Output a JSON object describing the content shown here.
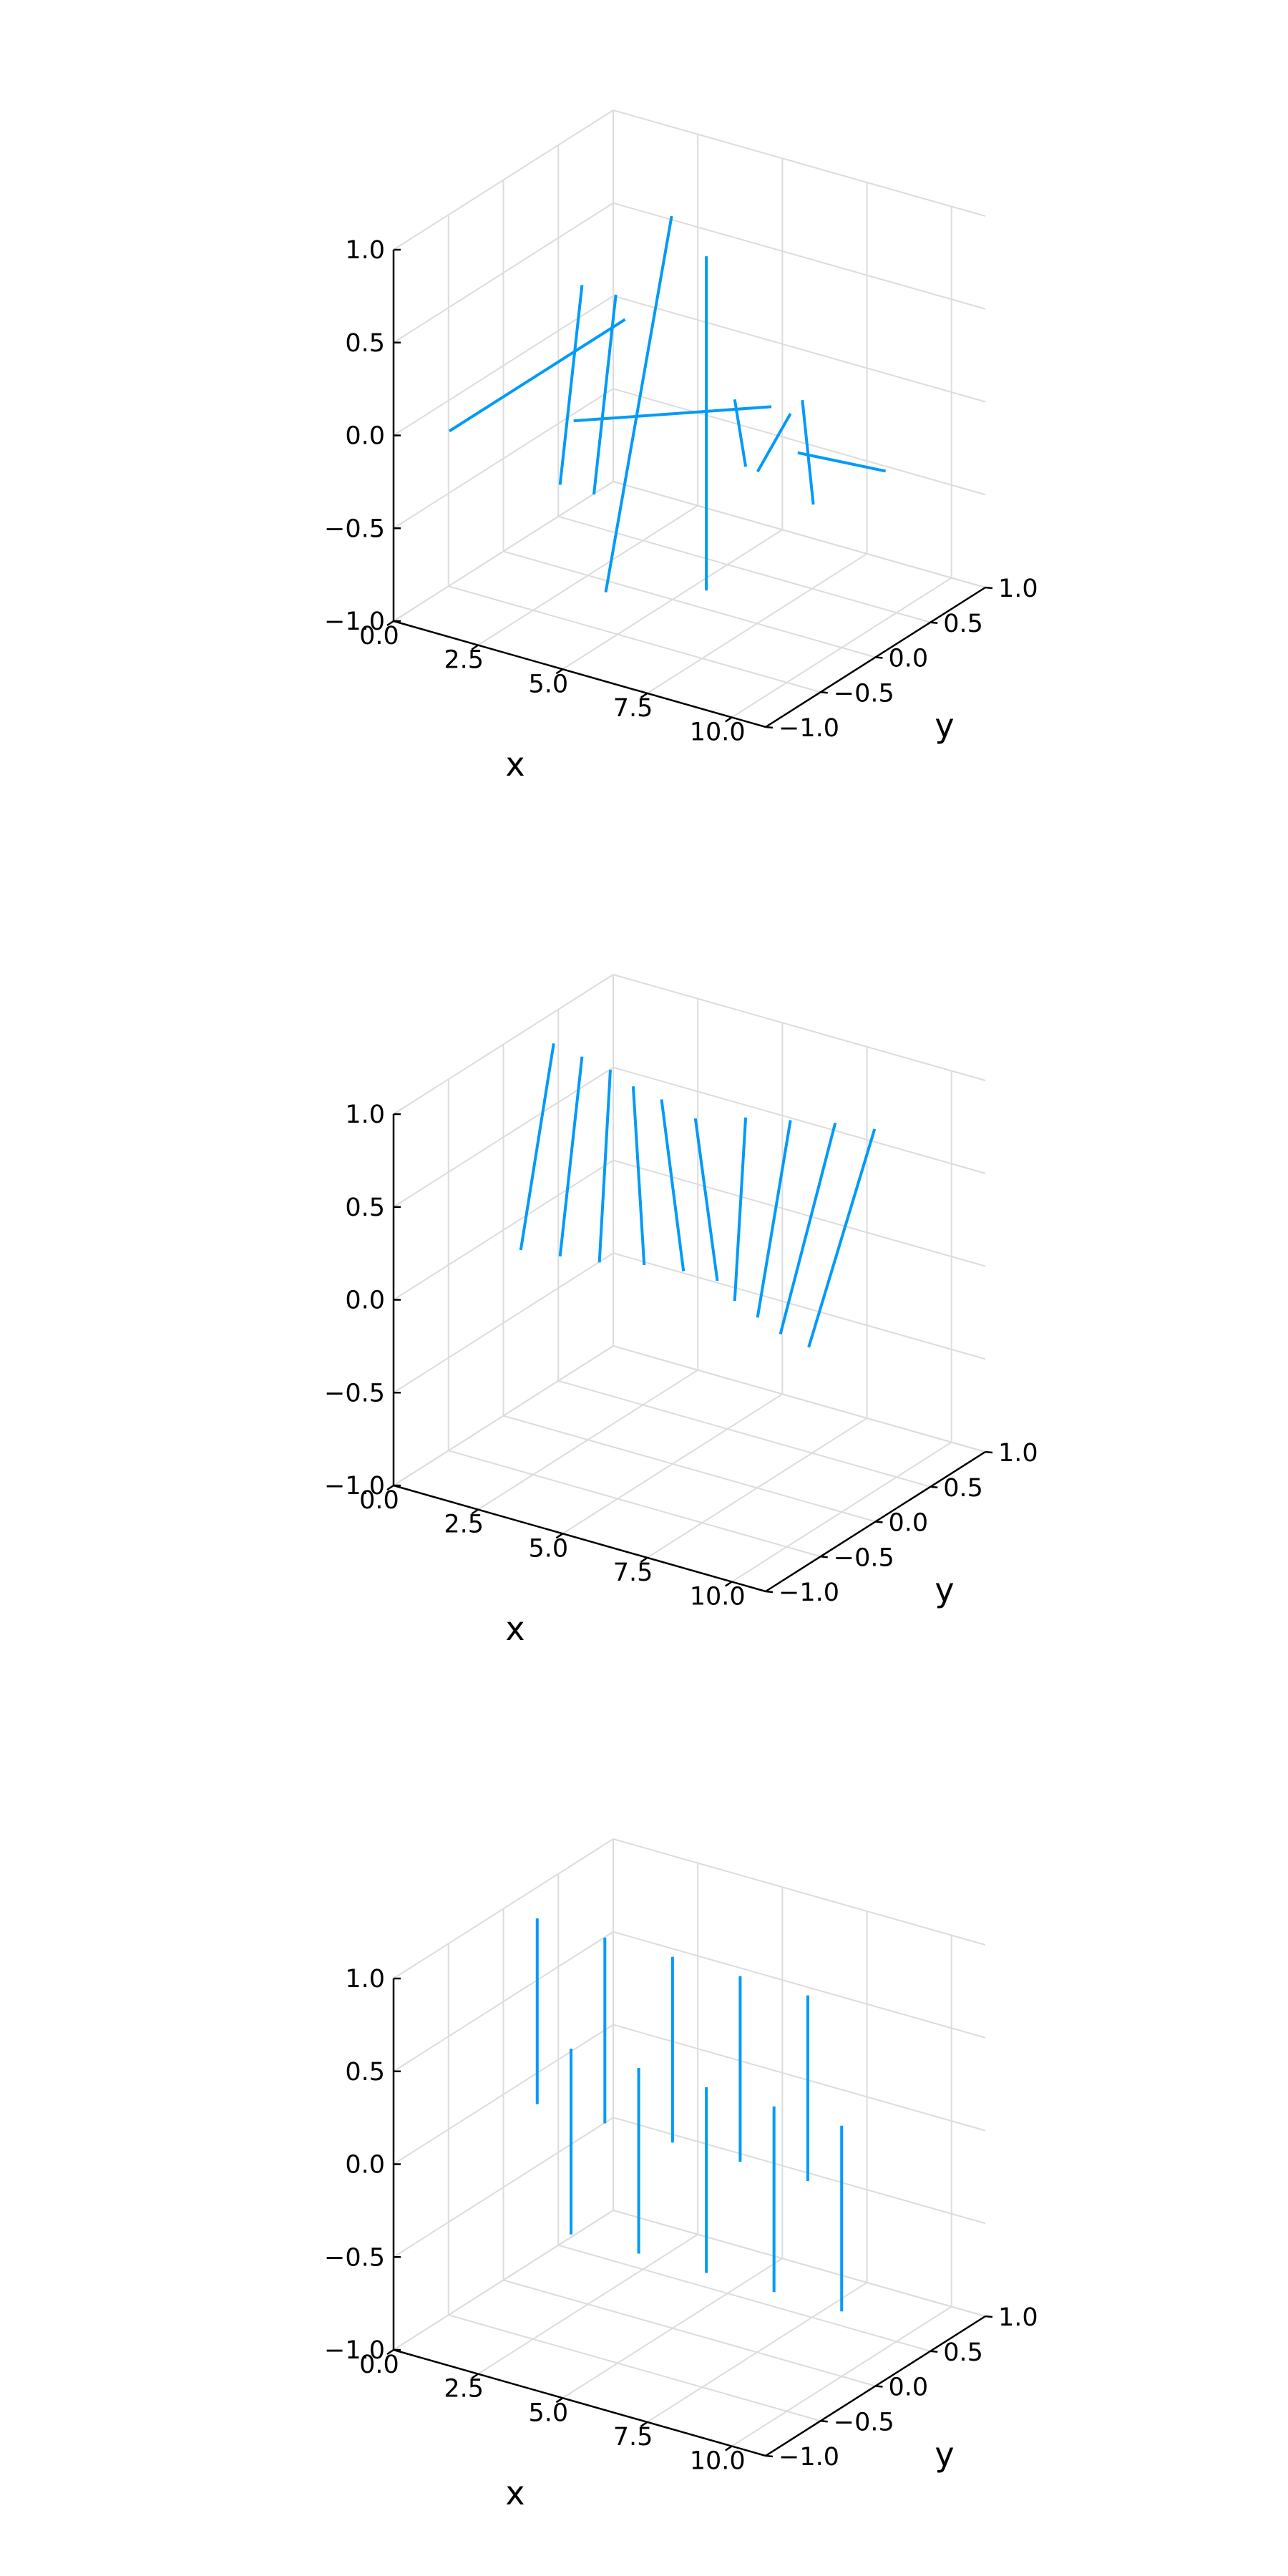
{
  "chart_data": [
    {
      "type": "line",
      "panel": "top",
      "xlabel": "x",
      "ylabel": "y",
      "zlabel": "",
      "xlim": [
        0,
        11
      ],
      "ylim": [
        -1,
        1
      ],
      "zlim": [
        -1,
        1
      ],
      "xticks": [
        0,
        2.5,
        5,
        7.5,
        10
      ],
      "yticks": [
        -1,
        -0.5,
        0,
        0.5,
        1
      ],
      "zticks": [
        -1,
        -0.5,
        0,
        0.5,
        1
      ],
      "xtick_labels": [
        "0.0",
        "2.5",
        "5.0",
        "7.5",
        "10.0"
      ],
      "ytick_labels": [
        "−1.0",
        "−0.5",
        "0.0",
        "0.5",
        "1.0"
      ],
      "ztick_labels": [
        "−1.0",
        "−0.5",
        "0.0",
        "0.5",
        "1.0"
      ],
      "grid": true,
      "color": "#009af9",
      "segments": [
        {
          "x": [
            1,
            1
          ],
          "y": [
            0.8,
            -0.8
          ],
          "z": [
            0,
            0
          ]
        },
        {
          "x": [
            2,
            2
          ],
          "y": [
            0.1,
            -0.1
          ],
          "z": [
            0.5,
            -0.5
          ]
        },
        {
          "x": [
            3,
            3
          ],
          "y": [
            -0.1,
            0.1
          ],
          "z": [
            -0.5,
            0.5
          ]
        },
        {
          "x": [
            4,
            4
          ],
          "y": [
            0.3,
            -0.3
          ],
          "z": [
            0.9,
            -0.9
          ]
        },
        {
          "x": [
            5,
            5
          ],
          "y": [
            -0.9,
            0.9
          ],
          "z": [
            0.3,
            -0.3
          ]
        },
        {
          "x": [
            6,
            6
          ],
          "y": [
            0,
            0
          ],
          "z": [
            0.9,
            -0.9
          ]
        },
        {
          "x": [
            7,
            7
          ],
          "y": [
            -0.05,
            0.05
          ],
          "z": [
            0.2,
            -0.2
          ]
        },
        {
          "x": [
            8,
            8
          ],
          "y": [
            0.15,
            -0.15
          ],
          "z": [
            0.1,
            -0.1
          ]
        },
        {
          "x": [
            9,
            9
          ],
          "y": [
            -0.05,
            0.05
          ],
          "z": [
            0.3,
            -0.3
          ]
        },
        {
          "x": [
            10,
            10
          ],
          "y": [
            0.4,
            -0.4
          ],
          "z": [
            -0.2,
            0.2
          ]
        }
      ]
    },
    {
      "type": "line",
      "panel": "middle",
      "xlabel": "x",
      "ylabel": "y",
      "zlabel": "",
      "xlim": [
        0,
        11
      ],
      "ylim": [
        -1,
        1
      ],
      "zlim": [
        -1,
        1
      ],
      "xticks": [
        0,
        2.5,
        5,
        7.5,
        10
      ],
      "yticks": [
        -1,
        -0.5,
        0,
        0.5,
        1
      ],
      "zticks": [
        -1,
        -0.5,
        0,
        0.5,
        1
      ],
      "xtick_labels": [
        "0.0",
        "2.5",
        "5.0",
        "7.5",
        "10.0"
      ],
      "ytick_labels": [
        "−1.0",
        "−0.5",
        "0.0",
        "0.5",
        "1.0"
      ],
      "ztick_labels": [
        "−1.0",
        "−0.5",
        "0.0",
        "0.5",
        "1.0"
      ],
      "grid": true,
      "color": "#009af9",
      "segments": [
        {
          "x": [
            1,
            1
          ],
          "y": [
            0.15,
            -0.15
          ],
          "z": [
            1.0,
            0.0
          ]
        },
        {
          "x": [
            2,
            2
          ],
          "y": [
            0.1,
            -0.1
          ],
          "z": [
            1.0,
            0.0
          ]
        },
        {
          "x": [
            3,
            3
          ],
          "y": [
            0.05,
            -0.05
          ],
          "z": [
            1.0,
            0.0
          ]
        },
        {
          "x": [
            4,
            4
          ],
          "y": [
            -0.05,
            0.05
          ],
          "z": [
            1.0,
            0.0
          ]
        },
        {
          "x": [
            5,
            5
          ],
          "y": [
            -0.1,
            0.1
          ],
          "z": [
            1.0,
            0.0
          ]
        },
        {
          "x": [
            6,
            6
          ],
          "y": [
            -0.1,
            0.1
          ],
          "z": [
            0.95,
            0.0
          ]
        },
        {
          "x": [
            7,
            7
          ],
          "y": [
            0.05,
            -0.05
          ],
          "z": [
            0.95,
            0.0
          ]
        },
        {
          "x": [
            8,
            8
          ],
          "y": [
            0.15,
            -0.15
          ],
          "z": [
            0.95,
            0.0
          ]
        },
        {
          "x": [
            9,
            9
          ],
          "y": [
            0.25,
            -0.25
          ],
          "z": [
            0.95,
            0.0
          ]
        },
        {
          "x": [
            10,
            10
          ],
          "y": [
            0.3,
            -0.3
          ],
          "z": [
            0.95,
            0.0
          ]
        }
      ]
    },
    {
      "type": "line",
      "panel": "bottom",
      "xlabel": "x",
      "ylabel": "y",
      "zlabel": "",
      "xlim": [
        0,
        11
      ],
      "ylim": [
        -1,
        1
      ],
      "zlim": [
        -1,
        1
      ],
      "xticks": [
        0,
        2.5,
        5,
        7.5,
        10
      ],
      "yticks": [
        -1,
        -0.5,
        0,
        0.5,
        1
      ],
      "zticks": [
        -1,
        -0.5,
        0,
        0.5,
        1
      ],
      "xtick_labels": [
        "0.0",
        "2.5",
        "5.0",
        "7.5",
        "10.0"
      ],
      "ytick_labels": [
        "−1.0",
        "−0.5",
        "0.0",
        "0.5",
        "1.0"
      ],
      "ztick_labels": [
        "−1.0",
        "−0.5",
        "0.0",
        "0.5",
        "1.0"
      ],
      "grid": true,
      "color": "#009af9",
      "segments": [
        {
          "x": [
            1,
            1
          ],
          "y": [
            0,
            0
          ],
          "z": [
            1.0,
            0.0
          ]
        },
        {
          "x": [
            2,
            2
          ],
          "y": [
            0,
            0
          ],
          "z": [
            0.35,
            -0.65
          ]
        },
        {
          "x": [
            3,
            3
          ],
          "y": [
            0,
            0
          ],
          "z": [
            1.0,
            0.0
          ]
        },
        {
          "x": [
            4,
            4
          ],
          "y": [
            0,
            0
          ],
          "z": [
            0.35,
            -0.65
          ]
        },
        {
          "x": [
            5,
            5
          ],
          "y": [
            0,
            0
          ],
          "z": [
            1.0,
            0.0
          ]
        },
        {
          "x": [
            6,
            6
          ],
          "y": [
            0,
            0
          ],
          "z": [
            0.35,
            -0.65
          ]
        },
        {
          "x": [
            7,
            7
          ],
          "y": [
            0,
            0
          ],
          "z": [
            1.0,
            0.0
          ]
        },
        {
          "x": [
            8,
            8
          ],
          "y": [
            0,
            0
          ],
          "z": [
            0.35,
            -0.65
          ]
        },
        {
          "x": [
            9,
            9
          ],
          "y": [
            0,
            0
          ],
          "z": [
            1.0,
            0.0
          ]
        },
        {
          "x": [
            10,
            10
          ],
          "y": [
            0,
            0
          ],
          "z": [
            0.35,
            -0.65
          ]
        }
      ]
    }
  ]
}
